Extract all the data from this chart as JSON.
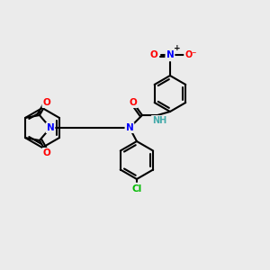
{
  "bg_color": "#ebebeb",
  "bond_color": "#000000",
  "bond_width": 1.5,
  "atom_colors": {
    "N": "#0000ff",
    "O": "#ff0000",
    "Cl": "#00bb00",
    "H_label": "#44aaaa"
  },
  "font_size": 7.5,
  "font_size_small": 6.5
}
